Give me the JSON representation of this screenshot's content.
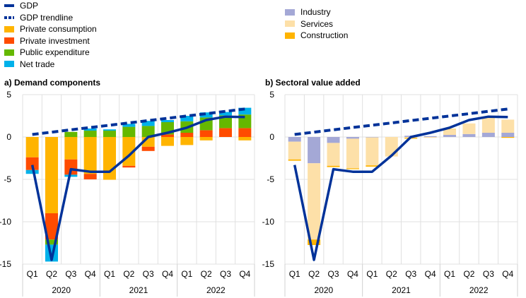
{
  "legend_left": [
    {
      "label": "GDP",
      "color": "#003299",
      "kind": "line"
    },
    {
      "label": "GDP trendline",
      "color": "#003299",
      "kind": "dash"
    },
    {
      "label": "Private consumption",
      "color": "#ffb400",
      "kind": "box"
    },
    {
      "label": "Private investment",
      "color": "#ff4b00",
      "kind": "box"
    },
    {
      "label": "Public expenditure",
      "color": "#65b800",
      "kind": "box"
    },
    {
      "label": "Net trade",
      "color": "#00b1ea",
      "kind": "box"
    }
  ],
  "legend_right": [
    {
      "label": "Industry",
      "color": "#a4a8d6",
      "kind": "box"
    },
    {
      "label": "Services",
      "color": "#fde0a8",
      "kind": "box"
    },
    {
      "label": "Construction",
      "color": "#ffb400",
      "kind": "box"
    }
  ],
  "chart_data": [
    {
      "type": "bar",
      "title": "a) Demand components",
      "stacked": true,
      "categories": [
        "Q1",
        "Q2",
        "Q3",
        "Q4",
        "Q1",
        "Q2",
        "Q3",
        "Q4",
        "Q1",
        "Q2",
        "Q3",
        "Q4"
      ],
      "years": [
        "2020",
        "2021",
        "2022"
      ],
      "ylim": [
        -15,
        5
      ],
      "yticks": [
        5,
        0,
        -5,
        -10,
        -15
      ],
      "series": [
        {
          "name": "Private consumption",
          "color": "#ffb400",
          "values": [
            -2.4,
            -9.0,
            -2.65,
            -4.35,
            -5.05,
            -3.4,
            -1.15,
            -1.05,
            -0.95,
            -0.4,
            0,
            -0.4
          ]
        },
        {
          "name": "Private investment",
          "color": "#ff4b00",
          "values": [
            -1.5,
            -3.1,
            -1.8,
            -0.65,
            0,
            -0.2,
            -0.5,
            0.3,
            0.5,
            0.8,
            1.05,
            1.05
          ]
        },
        {
          "name": "Public expenditure",
          "color": "#65b800",
          "values": [
            0,
            -0.6,
            0.6,
            0.75,
            0.75,
            1.2,
            1.3,
            1.45,
            1.35,
            1.5,
            1.5,
            1.6
          ]
        },
        {
          "name": "Net trade",
          "color": "#00b1ea",
          "values": [
            -0.45,
            -2.0,
            -0.25,
            0.25,
            0.15,
            0.35,
            0.6,
            0.25,
            0.65,
            0.6,
            0.4,
            0.8
          ]
        }
      ],
      "gdp": [
        -3.3,
        -14.5,
        -3.8,
        -4.1,
        -4.1,
        -2.2,
        0.0,
        0.5,
        1.1,
        2.0,
        2.4,
        2.35
      ],
      "trend": [
        0.3,
        0.57,
        0.85,
        1.12,
        1.39,
        1.66,
        1.94,
        2.21,
        2.48,
        2.75,
        3.03,
        3.3
      ]
    },
    {
      "type": "bar",
      "title": "b) Sectoral value added",
      "stacked": true,
      "categories": [
        "Q1",
        "Q2",
        "Q3",
        "Q4",
        "Q1",
        "Q2",
        "Q3",
        "Q4",
        "Q1",
        "Q2",
        "Q3",
        "Q4"
      ],
      "years": [
        "2020",
        "2021",
        "2022"
      ],
      "ylim": [
        -15,
        5
      ],
      "yticks": [
        5,
        0,
        -5,
        -10,
        -15
      ],
      "series": [
        {
          "name": "Industry",
          "color": "#a4a8d6",
          "values": [
            -0.55,
            -3.1,
            -0.7,
            -0.2,
            -0.05,
            0,
            0.15,
            0.1,
            0.25,
            0.35,
            0.5,
            0.5
          ]
        },
        {
          "name": "Services",
          "color": "#fde0a8",
          "values": [
            -2.1,
            -9.0,
            -2.7,
            -3.5,
            -3.3,
            -2.3,
            -0.1,
            -0.1,
            0.65,
            1.25,
            1.75,
            1.55
          ]
        },
        {
          "name": "Construction",
          "color": "#ffb400",
          "values": [
            -0.15,
            -0.65,
            -0.15,
            -0.1,
            -0.15,
            0,
            -0.1,
            0,
            0.05,
            0,
            0,
            -0.1
          ]
        }
      ],
      "gdp": [
        -3.3,
        -14.5,
        -3.8,
        -4.1,
        -4.1,
        -2.2,
        0.0,
        0.5,
        1.1,
        2.0,
        2.4,
        2.35
      ],
      "trend": [
        0.3,
        0.57,
        0.85,
        1.12,
        1.39,
        1.66,
        1.94,
        2.21,
        2.48,
        2.75,
        3.03,
        3.3
      ]
    }
  ]
}
